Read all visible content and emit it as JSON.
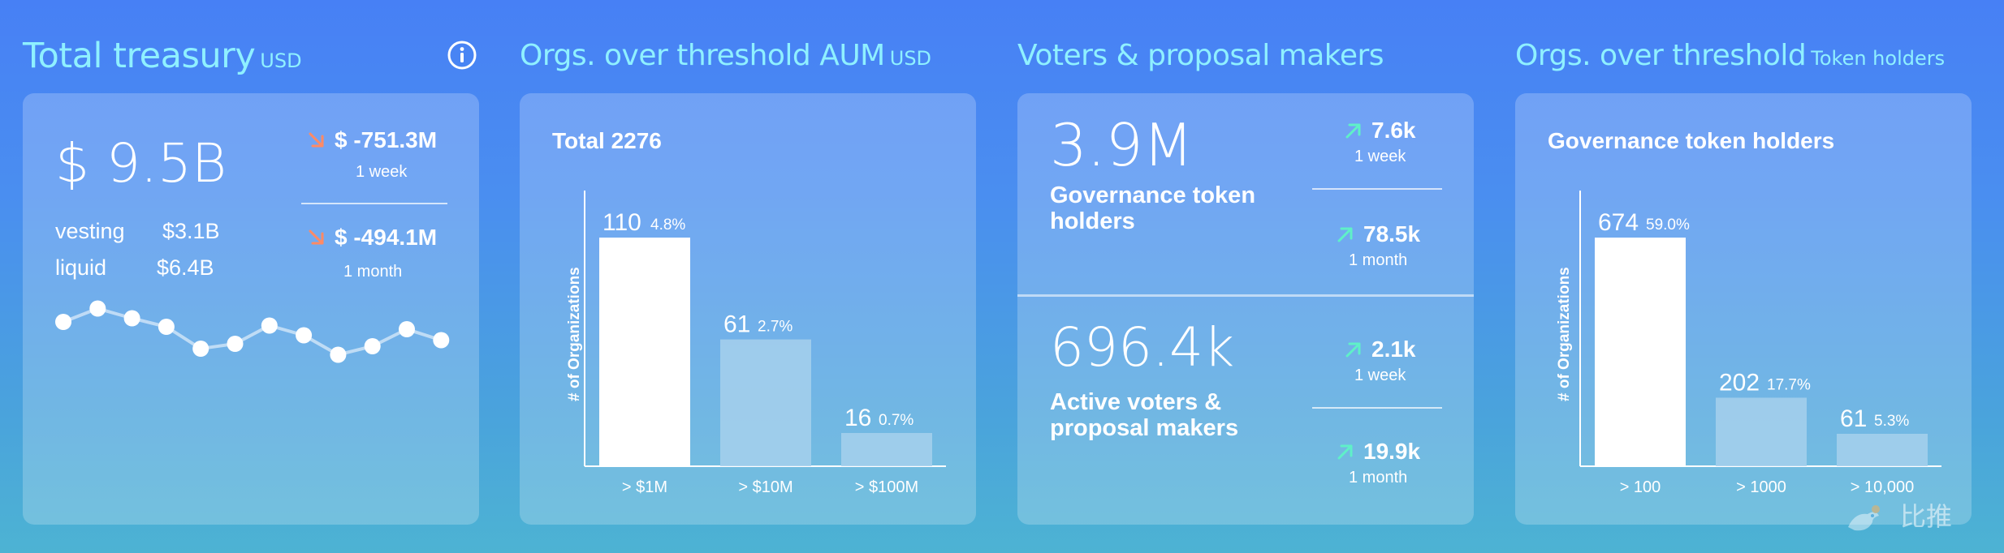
{
  "colors": {
    "title": "#8ff0ff",
    "down_arrow": "#ff8a65",
    "up_arrow": "#5ff0c8",
    "bar_primary": "#ffffff",
    "bar_secondary": "#a6d0ec"
  },
  "treasury": {
    "title": "Total treasury",
    "unit": "USD",
    "total": "$ 9.5B",
    "vesting_label": "vesting",
    "vesting_value": "$3.1B",
    "liquid_label": "liquid",
    "liquid_value": "$6.4B",
    "changes": [
      {
        "value": "$ -751.3M",
        "period": "1 week",
        "direction": "down",
        "icon": "arrow-down-right-icon"
      },
      {
        "value": "$ -494.1M",
        "period": "1 month",
        "direction": "down",
        "icon": "arrow-down-right-icon"
      }
    ],
    "info_icon": "info-icon"
  },
  "aum": {
    "title": "Orgs. over threshold AUM",
    "unit": "USD",
    "total_label": "Total 2276",
    "ylabel": "# of Organizations"
  },
  "voters": {
    "title": "Voters & proposal makers",
    "holders_value": "3.9M",
    "holders_label": "Governance token holders",
    "holders_changes": [
      {
        "value": "7.6k",
        "period": "1 week",
        "direction": "up",
        "icon": "arrow-up-right-icon"
      },
      {
        "value": "78.5k",
        "period": "1 month",
        "direction": "up",
        "icon": "arrow-up-right-icon"
      }
    ],
    "active_value": "696.4k",
    "active_label": "Active voters & proposal makers",
    "active_changes": [
      {
        "value": "2.1k",
        "period": "1 week",
        "direction": "up",
        "icon": "arrow-up-right-icon"
      },
      {
        "value": "19.9k",
        "period": "1 month",
        "direction": "up",
        "icon": "arrow-up-right-icon"
      }
    ]
  },
  "holders": {
    "title": "Orgs. over threshold",
    "unit": "Token holders",
    "chart_title": "Governance token holders",
    "ylabel": "# of Organizations"
  },
  "watermark": {
    "text": "比推"
  },
  "chart_data": [
    {
      "type": "line",
      "title": "",
      "series": [
        {
          "values": [
            52,
            63,
            55,
            48,
            30,
            34,
            49,
            41,
            25,
            32,
            46,
            37
          ]
        }
      ],
      "ylim": [
        0,
        100
      ],
      "grid": false
    },
    {
      "type": "bar",
      "title": "Total 2276",
      "ylabel": "# of Organizations",
      "categories": [
        "> $1M",
        "> $10M",
        "> $100M"
      ],
      "values": [
        110,
        61,
        16
      ],
      "percent_labels": [
        "4.8%",
        "2.7%",
        "0.7%"
      ],
      "ylim": [
        0,
        110
      ],
      "grid": false
    },
    {
      "type": "bar",
      "title": "Governance token holders",
      "ylabel": "# of Organizations",
      "categories": [
        "> 100",
        "> 1000",
        "> 10,000"
      ],
      "values": [
        674,
        202,
        61
      ],
      "percent_labels": [
        "59.0%",
        "17.7%",
        "5.3%"
      ],
      "ylim": [
        0,
        674
      ],
      "grid": false
    }
  ]
}
